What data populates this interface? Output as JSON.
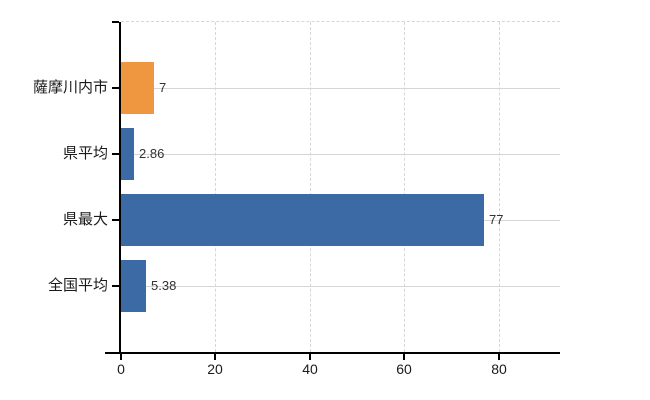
{
  "chart_data": {
    "type": "bar",
    "orientation": "horizontal",
    "title": "",
    "xlabel": "",
    "ylabel": "",
    "categories": [
      "薩摩川内市",
      "県平均",
      "県最大",
      "全国平均"
    ],
    "values": [
      7,
      2.86,
      77,
      5.38
    ],
    "value_labels": [
      "7",
      "2.86",
      "77",
      "5.38"
    ],
    "bar_colors": [
      "#ee9740",
      "#3c6aa5",
      "#3c6aa5",
      "#3c6aa5"
    ],
    "highlight_color": "#ee9740",
    "default_bar_color": "#3c6aa5",
    "x_tick_labels": [
      "0",
      "20",
      "40",
      "60",
      "80"
    ],
    "x_tick_values": [
      0,
      20,
      40,
      60,
      80
    ],
    "xlim": [
      0,
      93
    ],
    "grid": true,
    "legend": false,
    "background_color": "#ffffff",
    "axis_color": "#000000",
    "grid_color": "#d6d6d6",
    "category_label_color": "#1a1a1a",
    "value_label_color": "#333333"
  }
}
